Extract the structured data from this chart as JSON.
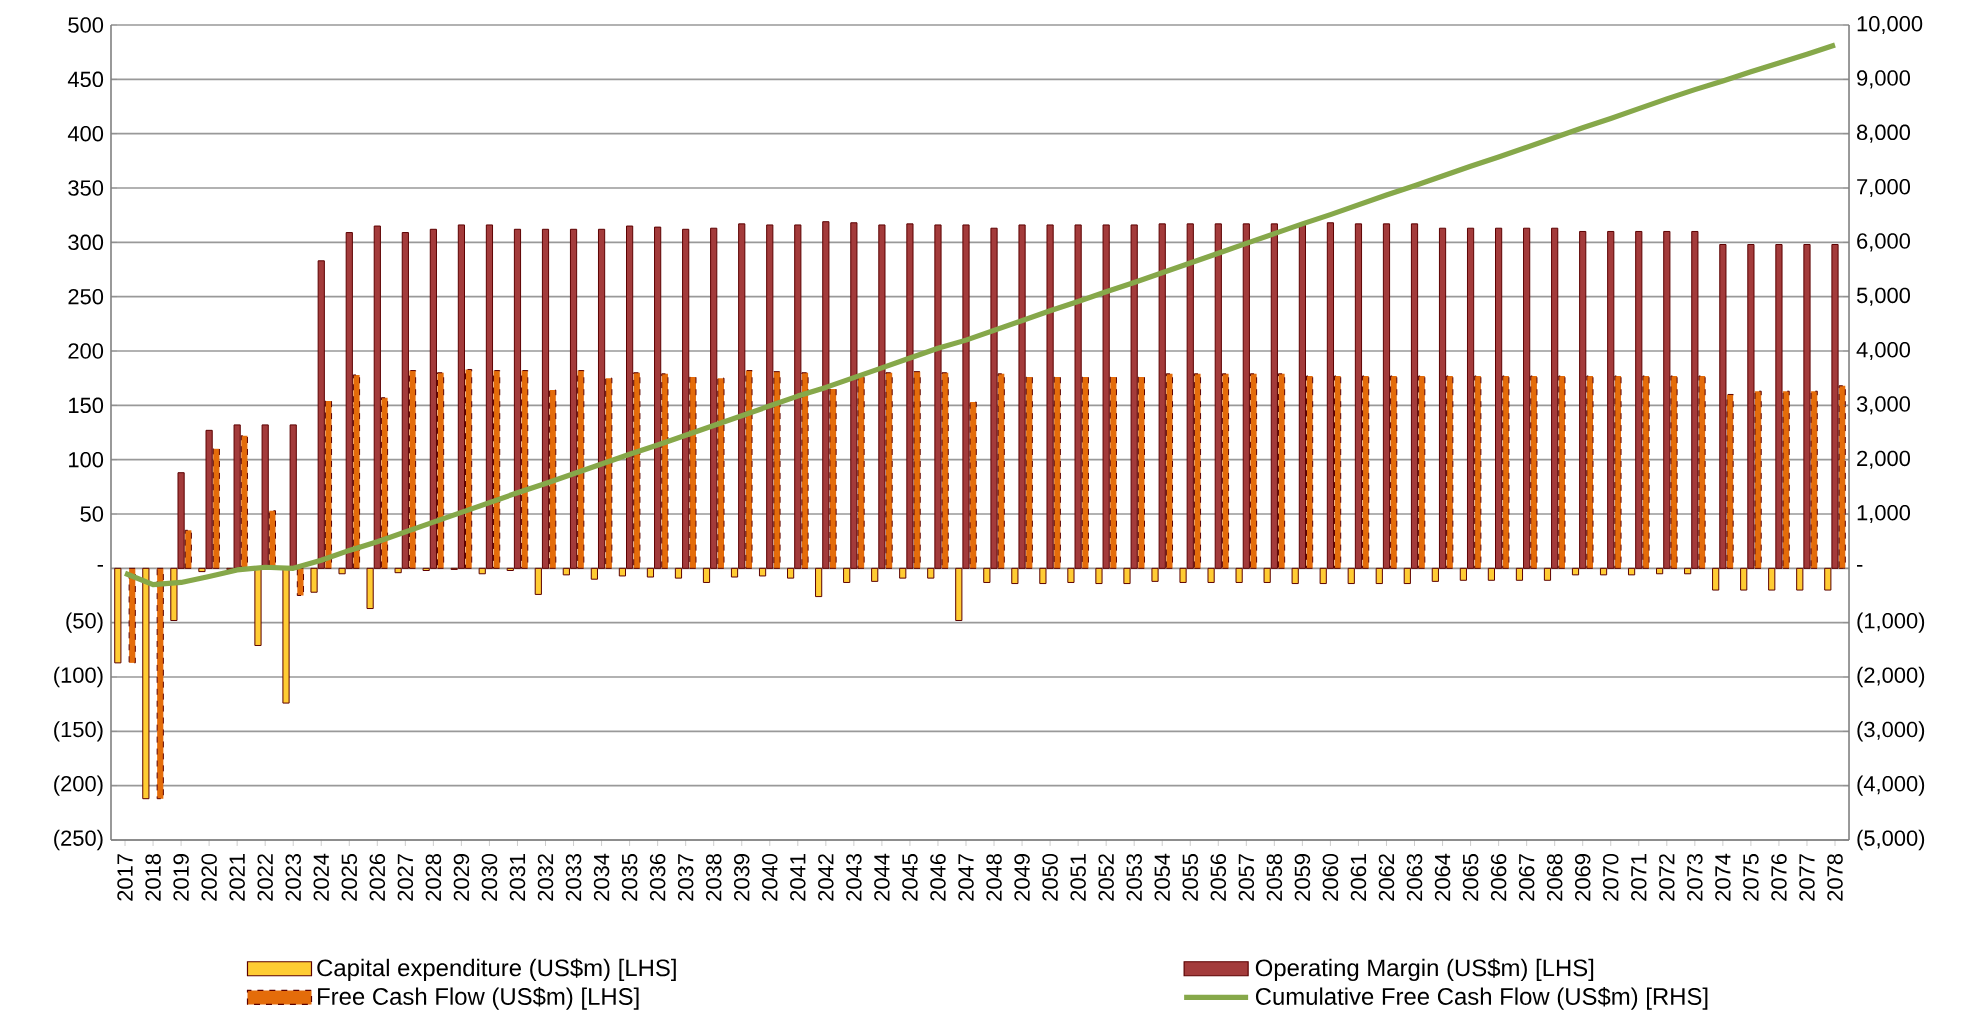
{
  "chart_data": {
    "type": "bar",
    "categories": [
      "2017",
      "2018",
      "2019",
      "2020",
      "2021",
      "2022",
      "2023",
      "2024",
      "2025",
      "2026",
      "2027",
      "2028",
      "2029",
      "2030",
      "2031",
      "2032",
      "2033",
      "2034",
      "2035",
      "2036",
      "2037",
      "2038",
      "2039",
      "2040",
      "2041",
      "2042",
      "2043",
      "2044",
      "2045",
      "2046",
      "2047",
      "2048",
      "2049",
      "2050",
      "2051",
      "2052",
      "2053",
      "2054",
      "2055",
      "2056",
      "2057",
      "2058",
      "2059",
      "2060",
      "2061",
      "2062",
      "2063",
      "2064",
      "2065",
      "2066",
      "2067",
      "2068",
      "2069",
      "2070",
      "2071",
      "2072",
      "2073",
      "2074",
      "2075",
      "2076",
      "2077",
      "2078"
    ],
    "series": [
      {
        "name": "Capital expenditure (US$m) [LHS]",
        "color": "#ffcc33",
        "values": [
          -87,
          -212,
          -48,
          -3,
          -1,
          -71,
          -124,
          -22,
          -5,
          -37,
          -4,
          -2,
          -1,
          -5,
          -2,
          -24,
          -6,
          -10,
          -7,
          -8,
          -9,
          -13,
          -8,
          -7,
          -9,
          -26,
          -13,
          -12,
          -9,
          -9,
          -48,
          -13,
          -14,
          -14,
          -13,
          -14,
          -14,
          -12,
          -13,
          -13,
          -13,
          -13,
          -14,
          -14,
          -14,
          -14,
          -14,
          -12,
          -11,
          -11,
          -11,
          -11,
          -6,
          -6,
          -6,
          -5,
          -5,
          -20,
          -20,
          -20,
          -20,
          -20
        ]
      },
      {
        "name": "Operating Margin (US$m) [LHS]",
        "color": "#a33b3b",
        "values": [
          null,
          null,
          88,
          127,
          132,
          132,
          132,
          283,
          309,
          315,
          309,
          312,
          316,
          316,
          312,
          312,
          312,
          312,
          315,
          314,
          312,
          313,
          317,
          316,
          316,
          319,
          318,
          316,
          317,
          316,
          316,
          313,
          316,
          316,
          316,
          316,
          316,
          317,
          317,
          317,
          317,
          317,
          316,
          318,
          317,
          317,
          317,
          313,
          313,
          313,
          313,
          313,
          310,
          310,
          310,
          310,
          310,
          298,
          298,
          298,
          298,
          298
        ]
      },
      {
        "name": "Free Cash Flow (US$m) [LHS]",
        "color": "#e46c0a",
        "line_style": "dashed",
        "values": [
          -87,
          -212,
          35,
          110,
          122,
          53,
          -25,
          154,
          178,
          157,
          182,
          180,
          183,
          182,
          182,
          164,
          182,
          175,
          180,
          179,
          176,
          175,
          182,
          181,
          180,
          165,
          177,
          180,
          181,
          180,
          153,
          179,
          176,
          176,
          176,
          176,
          176,
          179,
          179,
          179,
          179,
          179,
          177,
          177,
          177,
          177,
          177,
          177,
          177,
          177,
          177,
          177,
          177,
          177,
          177,
          177,
          177,
          160,
          163,
          163,
          163,
          168
        ]
      },
      {
        "name": "Cumulative Free Cash Flow (US$m) [RHS]",
        "type": "line",
        "axis": "y2",
        "color": "#86a84a",
        "values": [
          -90,
          -300,
          -260,
          -150,
          -30,
          20,
          0,
          150,
          330,
          490,
          670,
          850,
          1030,
          1210,
          1390,
          1560,
          1740,
          1920,
          2100,
          2270,
          2450,
          2630,
          2810,
          2990,
          3170,
          3330,
          3510,
          3690,
          3870,
          4050,
          4200,
          4380,
          4560,
          4740,
          4910,
          5090,
          5260,
          5440,
          5620,
          5800,
          5980,
          6160,
          6340,
          6510,
          6690,
          6870,
          7040,
          7220,
          7400,
          7570,
          7750,
          7930,
          8110,
          8280,
          8460,
          8640,
          8810,
          8970,
          9140,
          9300,
          9460,
          9630
        ]
      }
    ],
    "ylim": [
      -250,
      500
    ],
    "yticks": [
      {
        "value": -250,
        "label": "(250)"
      },
      {
        "value": -200,
        "label": "(200)"
      },
      {
        "value": -150,
        "label": "(150)"
      },
      {
        "value": -100,
        "label": "(100)"
      },
      {
        "value": -50,
        "label": "(50)"
      },
      {
        "value": 0,
        "label": "-"
      },
      50,
      100,
      150,
      200,
      250,
      300,
      350,
      400,
      450,
      500
    ],
    "y2lim": [
      -5000,
      10000
    ],
    "y2ticks": [
      {
        "value": -5000,
        "label": "(5,000)"
      },
      {
        "value": -4000,
        "label": "(4,000)"
      },
      {
        "value": -3000,
        "label": "(3,000)"
      },
      {
        "value": -2000,
        "label": "(2,000)"
      },
      {
        "value": -1000,
        "label": "(1,000)"
      },
      {
        "value": 0,
        "label": "-"
      },
      {
        "value": 1000,
        "label": "1,000"
      },
      {
        "value": 2000,
        "label": "2,000"
      },
      {
        "value": 3000,
        "label": "3,000"
      },
      {
        "value": 4000,
        "label": "4,000"
      },
      {
        "value": 5000,
        "label": "5,000"
      },
      {
        "value": 6000,
        "label": "6,000"
      },
      {
        "value": 7000,
        "label": "7,000"
      },
      {
        "value": 8000,
        "label": "8,000"
      },
      {
        "value": 9000,
        "label": "9,000"
      },
      {
        "value": 10000,
        "label": "10,000"
      }
    ],
    "grid": "y",
    "legend": "bottom"
  }
}
